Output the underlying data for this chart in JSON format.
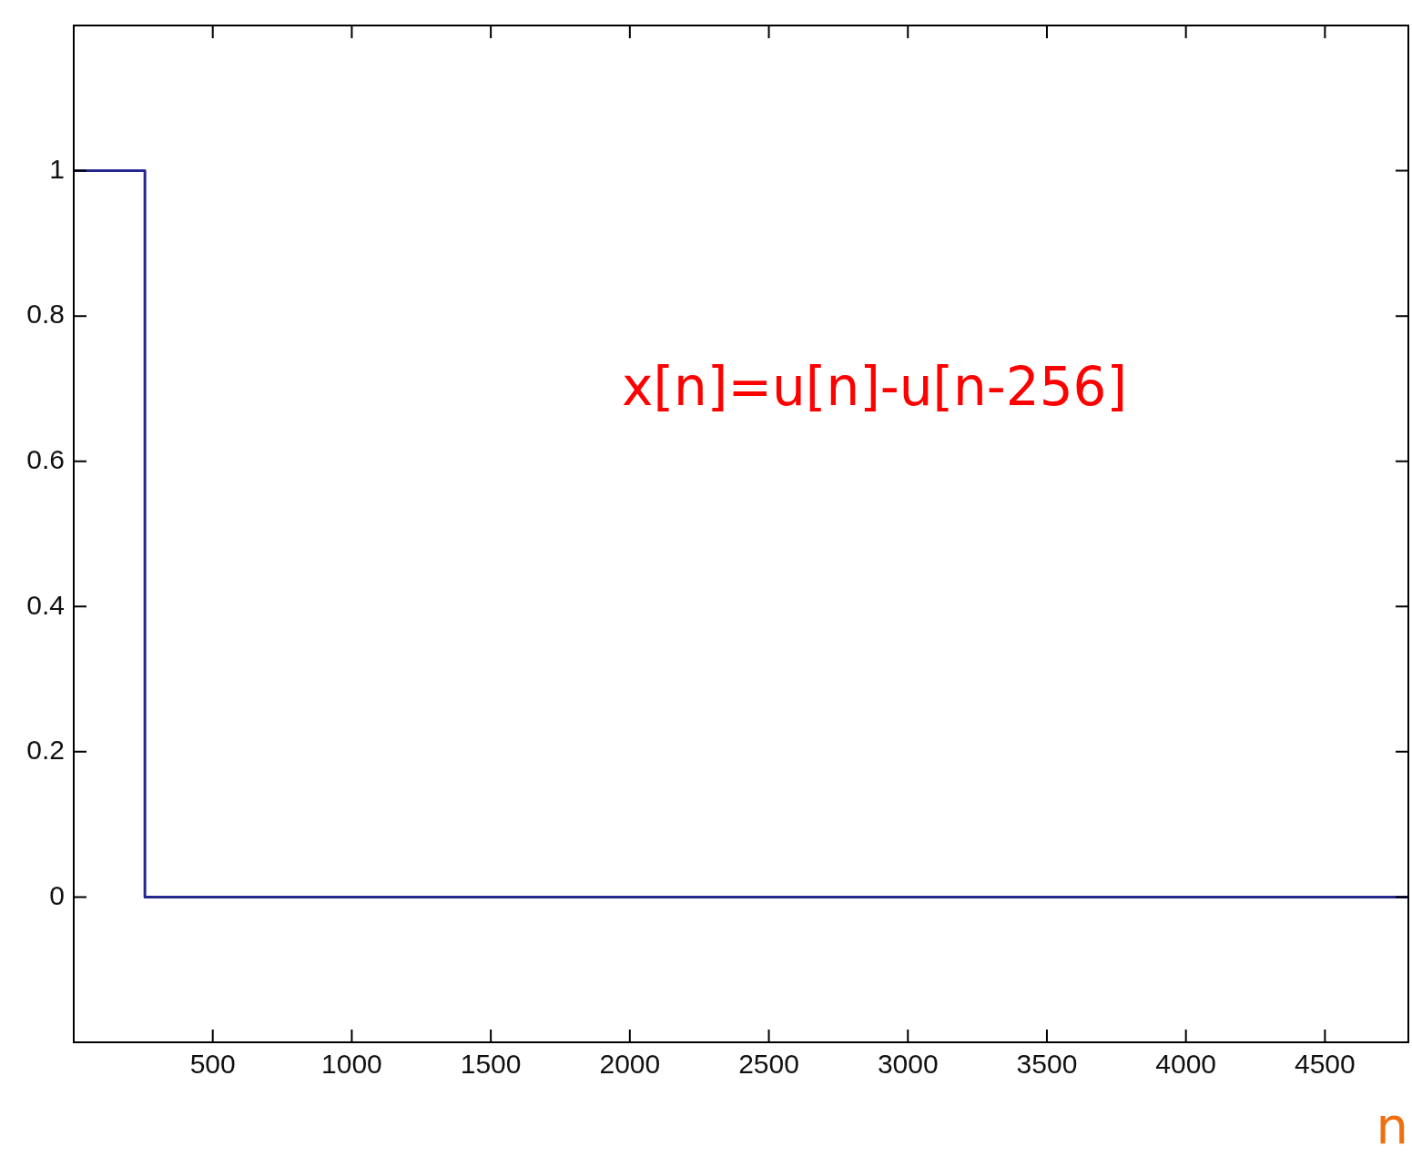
{
  "chart_data": {
    "type": "step",
    "xlabel": "n",
    "annotations": [
      "x[n]=u[n]-u[n-256]"
    ],
    "x": [
      0,
      256,
      4800
    ],
    "series": [
      {
        "color": "#26268f",
        "values": [
          1,
          0,
          0
        ]
      }
    ],
    "xlim": [
      0,
      4800
    ],
    "xticks": [
      500,
      1000,
      1500,
      2000,
      2500,
      3000,
      3500,
      4000,
      4500
    ],
    "ylim": [
      -0.2,
      1.2
    ],
    "yticks": [
      0,
      0.2,
      0.4,
      0.6,
      0.8,
      1
    ],
    "grid": false,
    "legend": false,
    "marker": "none",
    "line_style": "solid"
  }
}
